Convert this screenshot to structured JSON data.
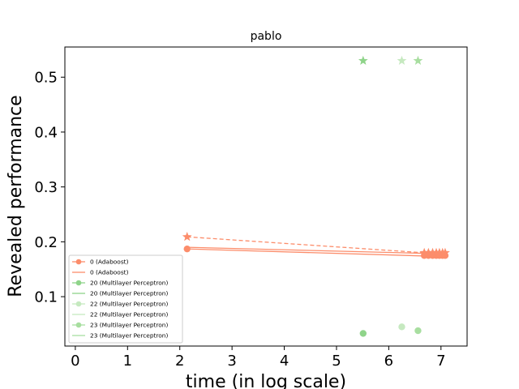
{
  "chart_data": {
    "type": "line",
    "title": "pablo",
    "xlabel": "time (in log scale)",
    "ylabel": "Revealed performance",
    "xlim": [
      -0.2,
      7.5
    ],
    "ylim": [
      0.01,
      0.555
    ],
    "x_ticks": [
      {
        "value": 0,
        "label": "0"
      },
      {
        "value": 1,
        "label": "1"
      },
      {
        "value": 2,
        "label": "2"
      },
      {
        "value": 3,
        "label": "3"
      },
      {
        "value": 4,
        "label": "4"
      },
      {
        "value": 5,
        "label": "5"
      },
      {
        "value": 6,
        "label": "6"
      },
      {
        "value": 7,
        "label": "7"
      }
    ],
    "y_ticks": [
      {
        "value": 0.1,
        "label": "0.1"
      },
      {
        "value": 0.2,
        "label": "0.2"
      },
      {
        "value": 0.3,
        "label": "0.3"
      },
      {
        "value": 0.4,
        "label": "0.4"
      },
      {
        "value": 0.5,
        "label": "0.5"
      }
    ],
    "grid": false,
    "legend_position": "lower-left",
    "legend": [
      {
        "label": "0 (Adaboost)",
        "color": "#fc8d6b",
        "marker": "circle"
      },
      {
        "label": "0 (Adaboost)",
        "color": "#fc8d6b",
        "marker": "none"
      },
      {
        "label": "20 (Multilayer Perceptron)",
        "color": "#8fd48a",
        "marker": "circle"
      },
      {
        "label": "20 (Multilayer Perceptron)",
        "color": "#8fd48a",
        "marker": "none"
      },
      {
        "label": "22 (Multilayer Perceptron)",
        "color": "#c6e9c0",
        "marker": "circle"
      },
      {
        "label": "22 (Multilayer Perceptron)",
        "color": "#c6e9c0",
        "marker": "none"
      },
      {
        "label": "23 (Multilayer Perceptron)",
        "color": "#a8dea0",
        "marker": "circle"
      },
      {
        "label": "23 (Multilayer Perceptron)",
        "color": "#a8dea0",
        "marker": "none"
      }
    ],
    "series": [
      {
        "legend_index": 0,
        "color": "#fc8d6b",
        "marker": "circle",
        "line": "none",
        "x": [
          2.14,
          6.68,
          6.76,
          6.84,
          6.91,
          6.97,
          7.03,
          7.08
        ],
        "y": [
          0.187,
          0.175,
          0.175,
          0.175,
          0.175,
          0.175,
          0.175,
          0.175
        ]
      },
      {
        "legend_index": 1,
        "color": "#fc8d6b",
        "marker": "none",
        "line": "solid",
        "x": [
          2.14,
          7.08
        ],
        "y": [
          0.19,
          0.178
        ]
      },
      {
        "legend_index": 1,
        "color": "#fc8d6b",
        "marker": "none",
        "line": "solid",
        "x": [
          2.14,
          7.08
        ],
        "y": [
          0.187,
          0.173
        ]
      },
      {
        "color": "#fc8d6b",
        "marker": "star",
        "line": "dashed",
        "x": [
          2.14,
          6.68,
          6.76,
          6.84,
          6.91,
          6.97,
          7.03,
          7.08
        ],
        "y": [
          0.209,
          0.18,
          0.18,
          0.18,
          0.18,
          0.18,
          0.18,
          0.18
        ]
      },
      {
        "legend_index": 2,
        "color": "#8fd48a",
        "marker": "circle",
        "line": "none",
        "x": [
          5.51
        ],
        "y": [
          0.033
        ]
      },
      {
        "color": "#8fd48a",
        "marker": "star",
        "line": "none",
        "x": [
          5.51
        ],
        "y": [
          0.53
        ]
      },
      {
        "legend_index": 4,
        "color": "#c6e9c0",
        "marker": "circle",
        "line": "none",
        "x": [
          6.25
        ],
        "y": [
          0.045
        ]
      },
      {
        "color": "#c6e9c0",
        "marker": "star",
        "line": "none",
        "x": [
          6.25
        ],
        "y": [
          0.53
        ]
      },
      {
        "legend_index": 6,
        "color": "#a8dea0",
        "marker": "circle",
        "line": "none",
        "x": [
          6.56
        ],
        "y": [
          0.038
        ]
      },
      {
        "color": "#a8dea0",
        "marker": "star",
        "line": "none",
        "x": [
          6.56
        ],
        "y": [
          0.53
        ]
      }
    ]
  }
}
